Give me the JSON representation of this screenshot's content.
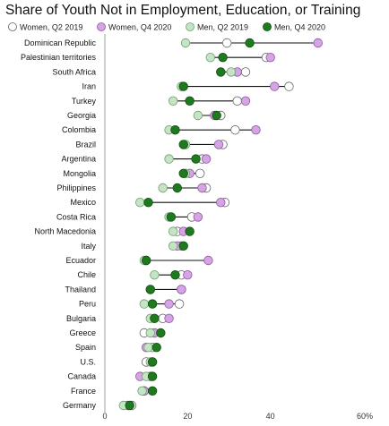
{
  "chart_data": {
    "type": "dot",
    "title": "Share of Youth Not in Employment, Education, or Training",
    "xlim": [
      0,
      60
    ],
    "x_ticks": [
      "0",
      "20",
      "40",
      "60%"
    ],
    "legend_position": "top",
    "series": [
      {
        "name": "Women, Q2 2019",
        "color": "#ffffff",
        "stroke": "#666666"
      },
      {
        "name": "Women, Q4 2020",
        "color": "#d6a4e6",
        "stroke": "#8a5a9a"
      },
      {
        "name": "Men, Q2 2019",
        "color": "#c5e3c5",
        "stroke": "#6f9f6f"
      },
      {
        "name": "Men, Q4 2020",
        "color": "#1f7a1f",
        "stroke": "#0f4f0f"
      }
    ],
    "countries": [
      {
        "name": "Dominican Republic",
        "values": [
          29.5,
          51.5,
          19.5,
          35
        ]
      },
      {
        "name": "Palestinian territories",
        "values": [
          39,
          40,
          25.5,
          28.5
        ]
      },
      {
        "name": "South Africa",
        "values": [
          34,
          32,
          30.5,
          28
        ]
      },
      {
        "name": "Iran",
        "values": [
          44.5,
          41,
          18.5,
          19
        ]
      },
      {
        "name": "Turkey",
        "values": [
          32,
          34,
          16.5,
          20.5
        ]
      },
      {
        "name": "Georgia",
        "values": [
          28,
          26.5,
          22.5,
          27
        ]
      },
      {
        "name": "Colombia",
        "values": [
          31.5,
          36.5,
          15.5,
          17
        ]
      },
      {
        "name": "Brazil",
        "values": [
          28.5,
          27.5,
          19.5,
          19
        ]
      },
      {
        "name": "Argentina",
        "values": [
          23.5,
          24.5,
          15.5,
          22
        ]
      },
      {
        "name": "Mongolia",
        "values": [
          23,
          20.5,
          19.5,
          19
        ]
      },
      {
        "name": "Philippines",
        "values": [
          24.5,
          23.5,
          14,
          17.5
        ]
      },
      {
        "name": "Mexico",
        "values": [
          29,
          28,
          8.5,
          10.5
        ]
      },
      {
        "name": "Costa Rica",
        "values": [
          21,
          22.5,
          15.5,
          16
        ]
      },
      {
        "name": "North Macedonia",
        "values": [
          17.5,
          19,
          16.5,
          20.5
        ]
      },
      {
        "name": "Italy",
        "values": [
          18.5,
          17.5,
          16.5,
          19
        ]
      },
      {
        "name": "Ecuador",
        "values": [
          10,
          25,
          9.5,
          10
        ]
      },
      {
        "name": "Chile",
        "values": [
          18.5,
          20,
          12,
          17
        ]
      },
      {
        "name": "Thailand",
        "values": [
          18.5,
          18.5,
          11,
          11
        ]
      },
      {
        "name": "Peru",
        "values": [
          18,
          15.5,
          9.5,
          11.5
        ]
      },
      {
        "name": "Bulgaria",
        "values": [
          14,
          15.5,
          11,
          12
        ]
      },
      {
        "name": "Greece",
        "values": [
          9.5,
          12,
          11,
          13.5
        ]
      },
      {
        "name": "Spain",
        "values": [
          11.5,
          10,
          10.5,
          12.5
        ]
      },
      {
        "name": "U.S.",
        "values": [
          10,
          11.5,
          11,
          11.5
        ]
      },
      {
        "name": "Canada",
        "values": [
          11,
          8.5,
          10,
          11.5
        ]
      },
      {
        "name": "France",
        "values": [
          9.5,
          9.5,
          9,
          11.5
        ]
      },
      {
        "name": "Germany",
        "values": [
          6.5,
          5.5,
          4.5,
          6
        ]
      }
    ]
  }
}
